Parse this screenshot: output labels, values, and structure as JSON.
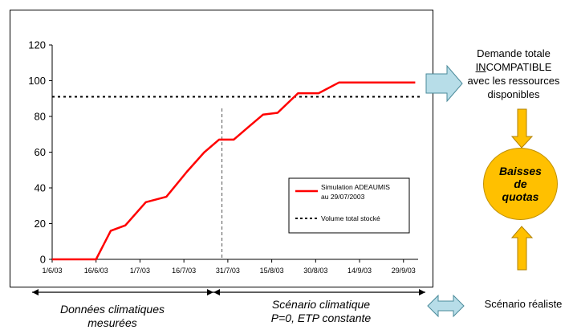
{
  "chart_data": {
    "type": "line",
    "y_ticks": [
      "0",
      "20",
      "40",
      "60",
      "80",
      "100",
      "120"
    ],
    "ylim": [
      0,
      120
    ],
    "x_ticks": [
      "1/6/03",
      "16/6/03",
      "1/7/03",
      "16/7/03",
      "31/7/03",
      "15/8/03",
      "30/8/03",
      "14/9/03",
      "29/9/03"
    ],
    "series": [
      {
        "name": "Simulation ADEAUMIS au 29/07/2003",
        "color": "#ff0000",
        "style": "solid",
        "x": [
          "1/6/03",
          "16/6/03",
          "21/6/03",
          "26/6/03",
          "3/7/03",
          "10/7/03",
          "17/7/03",
          "23/7/03",
          "28/7/03",
          "2/8/03",
          "7/8/03",
          "12/8/03",
          "17/8/03",
          "24/8/03",
          "31/8/03",
          "7/9/03",
          "29/9/03",
          "3/10/03"
        ],
        "values": [
          0,
          0,
          16,
          19,
          32,
          35,
          49,
          60,
          67,
          67,
          74,
          81,
          82,
          93,
          93,
          99,
          99,
          99
        ]
      },
      {
        "name": "Volume total stocké",
        "color": "#000000",
        "style": "dotted",
        "value": 91
      }
    ],
    "vertical_marker": "29/7/03",
    "legend": {
      "position": "lower-right",
      "items": [
        "Simulation ADEAUMIS au 29/07/2003",
        "Volume total stocké"
      ]
    }
  },
  "legend": {
    "sim_line1": "Simulation ADEAUMIS",
    "sim_line2": "au 29/07/2003",
    "volume": "Volume total stocké"
  },
  "annotations": {
    "demand": {
      "line1": "Demande totale",
      "line2_underlined": "IN",
      "line2_rest": "COMPATIBLE",
      "line3": "avec les ressources",
      "line4": "disponibles"
    },
    "quota": {
      "line1": "Baisses",
      "line2": "de",
      "line3": "quotas"
    },
    "realistic": "Scénario réaliste",
    "measured": {
      "line1": "Données climatiques",
      "line2": "mesurées"
    },
    "scenario": {
      "line1": "Scénario climatique",
      "line2": "P=0, ETP constante"
    },
    "colors": {
      "arrow_fill": "#b7dde8",
      "arrow_stroke": "#4a8a9a",
      "quota_fill": "#ffc000"
    }
  }
}
